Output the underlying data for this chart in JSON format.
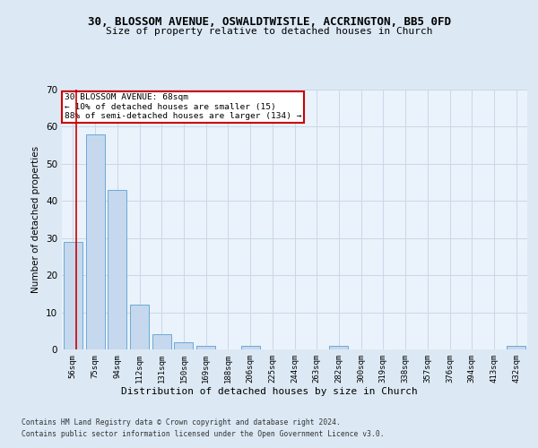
{
  "title": "30, BLOSSOM AVENUE, OSWALDTWISTLE, ACCRINGTON, BB5 0FD",
  "subtitle": "Size of property relative to detached houses in Church",
  "xlabel": "Distribution of detached houses by size in Church",
  "ylabel": "Number of detached properties",
  "bar_labels": [
    "56sqm",
    "75sqm",
    "94sqm",
    "112sqm",
    "131sqm",
    "150sqm",
    "169sqm",
    "188sqm",
    "206sqm",
    "225sqm",
    "244sqm",
    "263sqm",
    "282sqm",
    "300sqm",
    "319sqm",
    "338sqm",
    "357sqm",
    "376sqm",
    "394sqm",
    "413sqm",
    "432sqm"
  ],
  "bar_values": [
    29,
    58,
    43,
    12,
    4,
    2,
    1,
    0,
    1,
    0,
    0,
    0,
    1,
    0,
    0,
    0,
    0,
    0,
    0,
    0,
    1
  ],
  "bar_color": "#c5d8ed",
  "bar_edge_color": "#5a9fd4",
  "ylim": [
    0,
    70
  ],
  "yticks": [
    0,
    10,
    20,
    30,
    40,
    50,
    60,
    70
  ],
  "property_label": "30 BLOSSOM AVENUE: 68sqm",
  "annotation_line1": "← 10% of detached houses are smaller (15)",
  "annotation_line2": "88% of semi-detached houses are larger (134) →",
  "red_line_color": "#cc0000",
  "annotation_box_color": "#ffffff",
  "annotation_box_edge": "#cc0000",
  "grid_color": "#c8d8e8",
  "background_color": "#dce9f5",
  "plot_bg_color": "#eaf2fb",
  "footer_line1": "Contains HM Land Registry data © Crown copyright and database right 2024.",
  "footer_line2": "Contains public sector information licensed under the Open Government Licence v3.0."
}
